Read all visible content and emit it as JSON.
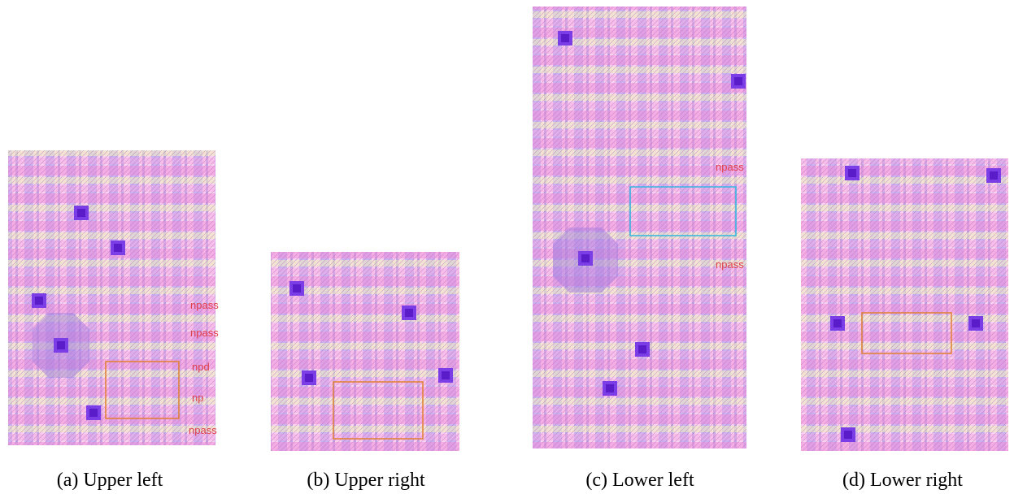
{
  "figure": {
    "panels": [
      {
        "caption": "(a) Upper left",
        "labels": [
          "npass",
          "npass",
          "npd",
          "np",
          "npass"
        ]
      },
      {
        "caption": "(b) Upper right",
        "labels": []
      },
      {
        "caption": "(c) Lower left",
        "labels": [
          "npass",
          "npass"
        ]
      },
      {
        "caption": "(d) Lower right",
        "labels": []
      }
    ]
  }
}
